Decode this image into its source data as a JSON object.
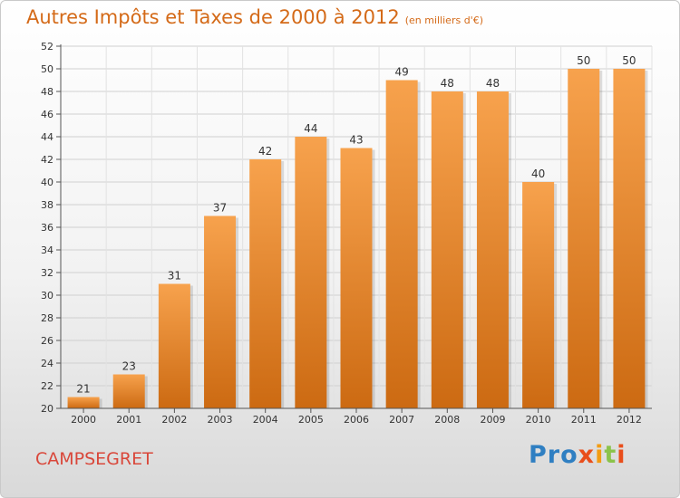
{
  "header": {
    "title": "Autres Impôts et Taxes de 2000 à 2012",
    "unit": "(en milliers d'€)"
  },
  "footer": {
    "commune": "CAMPSEGRET",
    "logo": [
      "Pro",
      "x",
      "i",
      "t",
      "i"
    ]
  },
  "colors": {
    "bar_top": "#f7a24d",
    "bar_bottom": "#cc6a12",
    "title": "#d46a18",
    "commune": "#d9473a"
  },
  "chart_data": {
    "type": "bar",
    "categories": [
      "2000",
      "2001",
      "2002",
      "2003",
      "2004",
      "2005",
      "2006",
      "2007",
      "2008",
      "2009",
      "2010",
      "2011",
      "2012"
    ],
    "values": [
      21,
      23,
      31,
      37,
      42,
      44,
      43,
      49,
      48,
      48,
      40,
      50,
      50
    ],
    "title": "Autres Impôts et Taxes de 2000 à 2012",
    "ylim": [
      20,
      52
    ],
    "yticks": [
      20,
      22,
      24,
      26,
      28,
      30,
      32,
      34,
      36,
      38,
      40,
      42,
      44,
      46,
      48,
      50,
      52
    ],
    "grid": true,
    "legend": "none"
  }
}
